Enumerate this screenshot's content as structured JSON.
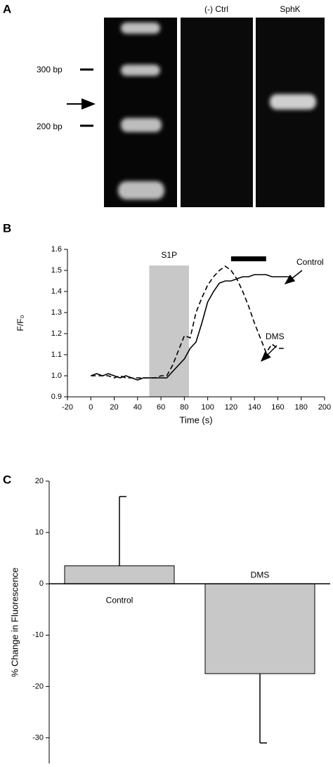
{
  "gel": {
    "label": "A",
    "lanes": [
      "(-) Ctrl",
      "SphK"
    ],
    "markers": [
      "300 bp",
      "200 bp"
    ]
  },
  "chart_data": [
    {
      "type": "line",
      "label": "B",
      "xlabel": "Time (s)",
      "ylabel": "F/F₀",
      "x": [
        0,
        5,
        10,
        15,
        20,
        25,
        30,
        35,
        40,
        45,
        50,
        55,
        60,
        65,
        70,
        75,
        80,
        85,
        90,
        95,
        100,
        105,
        110,
        115,
        120,
        125,
        130,
        135,
        140,
        145,
        150,
        155,
        160,
        165,
        170
      ],
      "series": [
        {
          "name": "Control",
          "color": "#000000",
          "dash": false,
          "values": [
            1.0,
            1.01,
            1.0,
            1.01,
            1.0,
            0.99,
            1.0,
            0.99,
            0.98,
            0.99,
            0.99,
            0.99,
            0.99,
            0.99,
            1.02,
            1.05,
            1.08,
            1.13,
            1.16,
            1.25,
            1.35,
            1.4,
            1.44,
            1.45,
            1.45,
            1.46,
            1.47,
            1.47,
            1.48,
            1.48,
            1.48,
            1.47,
            1.47,
            1.47,
            1.47
          ]
        },
        {
          "name": "DMS",
          "color": "#000000",
          "dash": true,
          "values": [
            1.0,
            1.0,
            1.0,
            1.0,
            0.99,
            1.0,
            0.99,
            0.99,
            0.99,
            0.99,
            0.99,
            0.99,
            1.0,
            1.0,
            1.05,
            1.12,
            1.19,
            1.18,
            1.3,
            1.37,
            1.43,
            1.47,
            1.5,
            1.52,
            1.5,
            1.46,
            1.4,
            1.33,
            1.25,
            1.18,
            1.11,
            1.15,
            1.13,
            1.13,
            null
          ]
        }
      ],
      "shade": {
        "label": "S1P",
        "x": [
          50,
          84
        ]
      },
      "bar_marker": {
        "x": [
          120,
          150
        ],
        "y": 1.555
      },
      "xlim": [
        -20,
        200
      ],
      "xticks": [
        -20,
        0,
        20,
        40,
        60,
        80,
        100,
        120,
        140,
        160,
        180,
        200
      ],
      "ylim": [
        0.9,
        1.6
      ],
      "yticks": [
        0.9,
        {
          "value": 1.0,
          "label": "1.0"
        },
        1.1,
        1.2,
        1.3,
        1.4,
        1.5,
        1.6
      ]
    },
    {
      "type": "bar",
      "label": "C",
      "ylabel": "% Change in Fluorescence",
      "categories": [
        "Control",
        "DMS"
      ],
      "values": [
        3.5,
        -17.5
      ],
      "errors": [
        13.5,
        13.5
      ],
      "color": "#c8c8c8",
      "ylim": [
        -35,
        20
      ],
      "yticks": [
        20,
        10,
        0,
        -10,
        -20,
        -30
      ]
    }
  ]
}
